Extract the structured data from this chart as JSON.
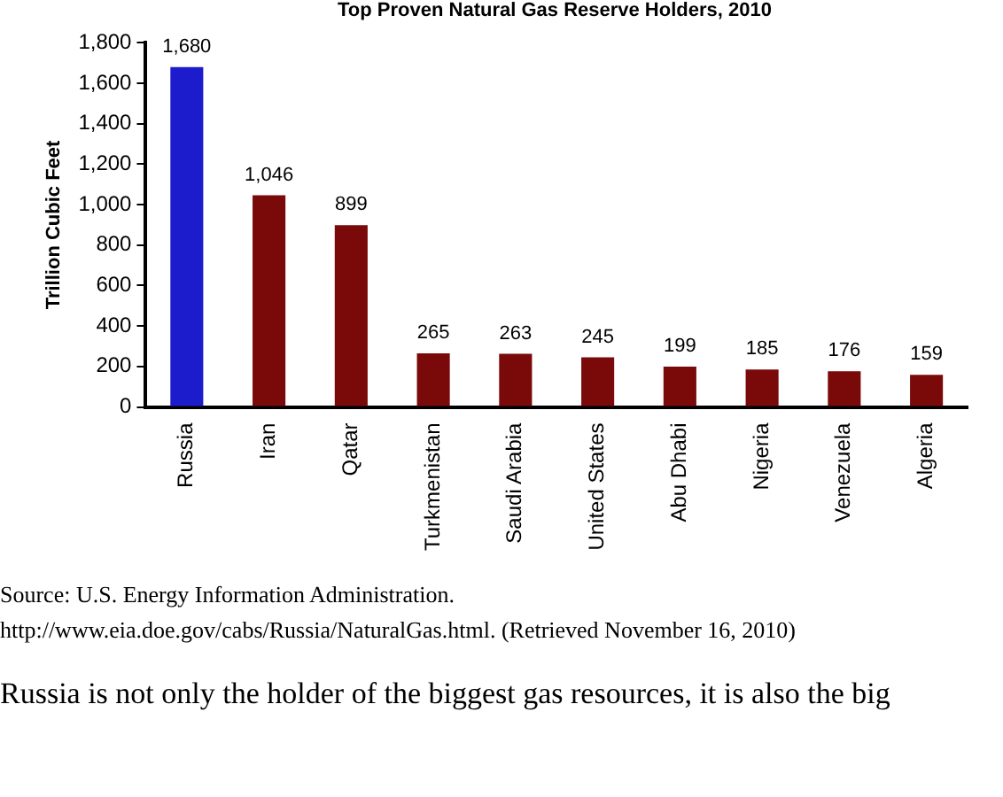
{
  "chart_data": {
    "type": "bar",
    "title": "Top Proven Natural Gas Reserve Holders, 2010",
    "ylabel": "Trillion Cubic Feet",
    "categories": [
      "Russia",
      "Iran",
      "Qatar",
      "Turkmenistan",
      "Saudi Arabia",
      "United States",
      "Abu Dhabi",
      "Nigeria",
      "Venezuela",
      "Algeria"
    ],
    "values": [
      1680,
      1046,
      899,
      265,
      263,
      245,
      199,
      185,
      176,
      159
    ],
    "value_labels": [
      "1,680",
      "1,046",
      "899",
      "265",
      "263",
      "245",
      "199",
      "185",
      "176",
      "159"
    ],
    "colors": [
      "#1c1ccc",
      "#7a0a0a",
      "#7a0a0a",
      "#7a0a0a",
      "#7a0a0a",
      "#7a0a0a",
      "#7a0a0a",
      "#7a0a0a",
      "#7a0a0a",
      "#7a0a0a"
    ],
    "ylim": [
      0,
      1800
    ],
    "yticks": [
      0,
      200,
      400,
      600,
      800,
      {
        "value": 1000,
        "label": "1,000"
      },
      {
        "value": 1200,
        "label": "1,200"
      },
      {
        "value": 1400,
        "label": "1,400"
      },
      {
        "value": 1600,
        "label": "1,600"
      },
      {
        "value": 1800,
        "label": "1,800"
      }
    ],
    "grid": false,
    "annotations": [
      "Source: U.S. Energy Information Administration.",
      "http://www.eia.doe.gov/cabs/Russia/NaturalGas.html. (Retrieved November 16, 2010)",
      "Russia is not only the holder of the biggest gas resources, it is also the big"
    ]
  }
}
